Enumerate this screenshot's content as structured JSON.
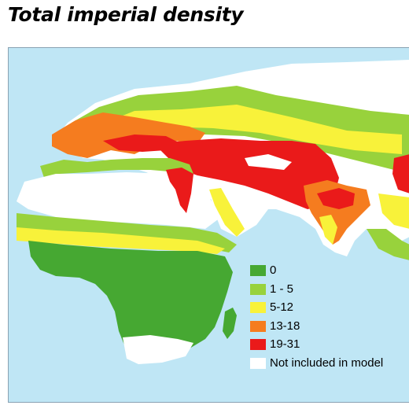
{
  "title": "Total imperial density",
  "colors": {
    "ocean": "#bfe6f5",
    "zero": "#46a832",
    "one_five": "#98d23c",
    "five_twelve": "#f8f23a",
    "thirteen_eighteen": "#f57c1f",
    "nineteen_thirtyone": "#ea1a1a",
    "not_included": "#ffffff"
  },
  "legend": {
    "items": [
      {
        "label": "0",
        "color": "#46a832"
      },
      {
        "label": "1 - 5",
        "color": "#98d23c"
      },
      {
        "label": "5-12",
        "color": "#f8f23a"
      },
      {
        "label": "13-18",
        "color": "#f57c1f"
      },
      {
        "label": "19-31",
        "color": "#ea1a1a"
      },
      {
        "label": "Not included in model",
        "color": "#ffffff"
      }
    ]
  }
}
